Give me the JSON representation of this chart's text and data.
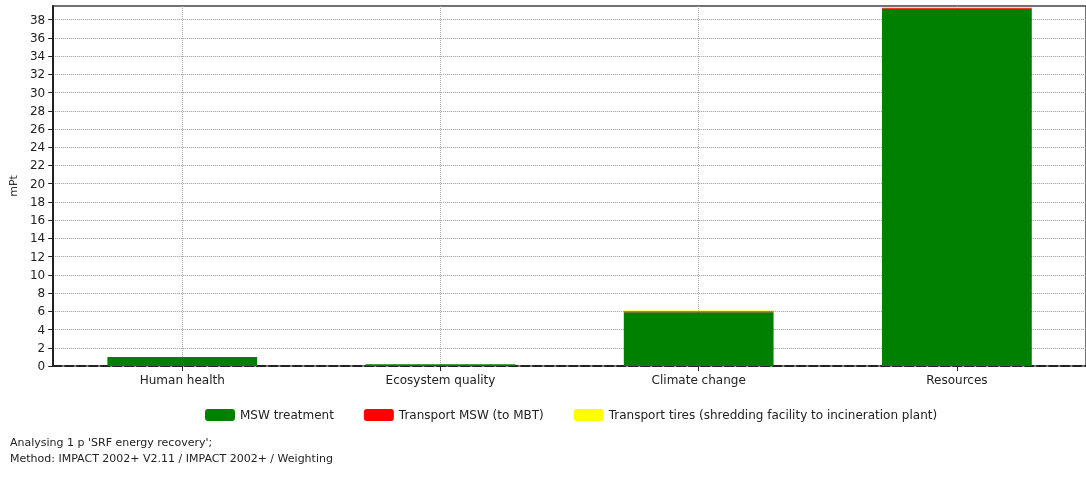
{
  "chart_data": {
    "type": "bar",
    "stacked": true,
    "ylabel": "mPt",
    "categories": [
      "Human health",
      "Ecosystem quality",
      "Climate change",
      "Resources"
    ],
    "series": [
      {
        "name": "MSW treatment",
        "color": "#008000",
        "values": [
          1.0,
          0.2,
          5.9,
          39.2
        ]
      },
      {
        "name": "Transport MSW (to MBT)",
        "color": "#ff0000",
        "values": [
          0,
          0,
          0.1,
          0.1
        ]
      },
      {
        "name": "Transport tires (shredding facility to incineration plant)",
        "color": "#ffff00",
        "values": [
          0,
          0,
          0.1,
          0.1
        ]
      }
    ],
    "ylim": [
      0,
      39.5
    ],
    "yticks": [
      0,
      2,
      4,
      6,
      8,
      10,
      12,
      14,
      16,
      18,
      20,
      22,
      24,
      26,
      28,
      30,
      32,
      34,
      36,
      38
    ],
    "grid": true,
    "legend": "bottom",
    "annotations": [
      "Analysing 1 p 'SRF energy recovery';",
      "Method: IMPACT 2002+ V2.11 / IMPACT 2002+ / Weighting"
    ]
  }
}
